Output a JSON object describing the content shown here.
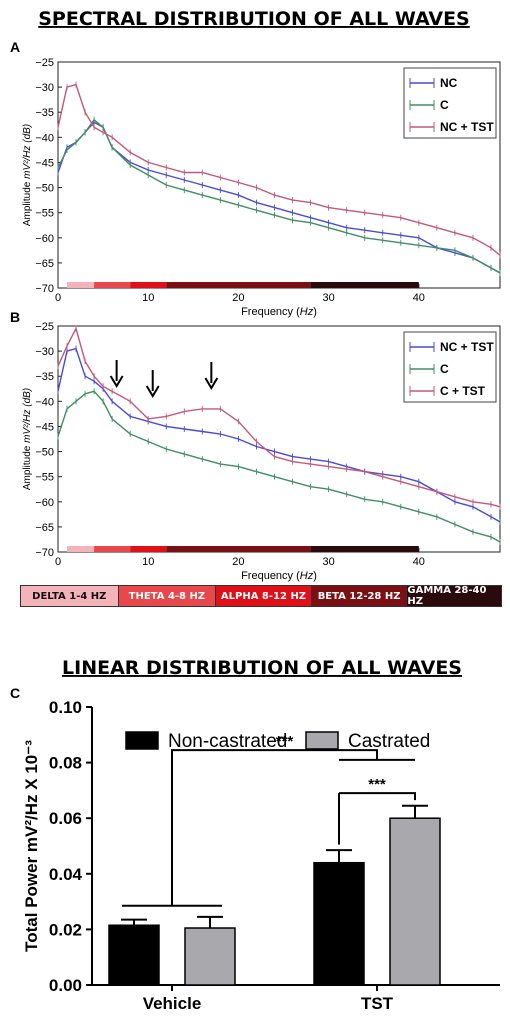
{
  "title_spectral": "SPECTRAL DISTRIBUTION OF ALL WAVES",
  "title_linear": "LINEAR DISTRIBUTION OF ALL WAVES",
  "panel_labels": [
    "A",
    "B",
    "C"
  ],
  "colors": {
    "nc": "#4a4ad8",
    "c": "#3f8f62",
    "tst": "#c05a78"
  },
  "bands": [
    {
      "label": "DELTA 1-4 HZ",
      "color": "#f4b3b8",
      "text_color": "#111111"
    },
    {
      "label": "THETA 4-8 HZ",
      "color": "#e8474b",
      "text_color": "#ffffff"
    },
    {
      "label": "ALPHA 8-12 HZ",
      "color": "#e01018",
      "text_color": "#ffffff"
    },
    {
      "label": "BETA 12-28 HZ",
      "color": "#7a1014",
      "text_color": "#ffffff"
    },
    {
      "label": "GAMMA  28-40 HZ",
      "color": "#2a0a0c",
      "text_color": "#ffffff"
    }
  ],
  "chart_data": [
    {
      "type": "line",
      "panel": "A",
      "xlabel": "Frequency (Hz)",
      "ylabel": "Amplitude mV²/Hz (dB)",
      "xlim": [
        0,
        49
      ],
      "ylim": [
        -70,
        -25
      ],
      "xticks": [
        0,
        10,
        20,
        30,
        40
      ],
      "yticks": [
        -70,
        -65,
        -60,
        -55,
        -50,
        -45,
        -40,
        -35,
        -30,
        -25
      ],
      "x": [
        0,
        1,
        2,
        3,
        4,
        5,
        6,
        8,
        10,
        12,
        14,
        16,
        18,
        20,
        22,
        24,
        26,
        28,
        30,
        32,
        34,
        36,
        38,
        40,
        42,
        44,
        46,
        48,
        49
      ],
      "series": [
        {
          "name": "NC",
          "color_key": "nc",
          "values": [
            -47,
            -42,
            -41,
            -39,
            -37,
            -38,
            -42,
            -45,
            -46.5,
            -47.5,
            -48.5,
            -49.5,
            -50.5,
            -51.5,
            -53,
            -54,
            -55,
            -56,
            -57,
            -58,
            -58.5,
            -59,
            -59.5,
            -60,
            -62,
            -63,
            -64,
            -66,
            -67
          ]
        },
        {
          "name": "C",
          "color_key": "c",
          "values": [
            -46,
            -42.5,
            -41,
            -39,
            -36.5,
            -38,
            -42,
            -45.5,
            -47.5,
            -49.5,
            -50.5,
            -51.5,
            -52.5,
            -53.5,
            -54.5,
            -55.5,
            -56.5,
            -57,
            -58,
            -59,
            -60,
            -60.5,
            -61,
            -61.5,
            -62,
            -62.5,
            -64,
            -66,
            -67
          ]
        },
        {
          "name": "NC + TST",
          "color_key": "tst",
          "values": [
            -38,
            -30,
            -29.5,
            -35,
            -38,
            -39,
            -40,
            -43,
            -45,
            -46,
            -47,
            -47,
            -48,
            -49,
            -50,
            -51.5,
            -52.5,
            -53,
            -54,
            -54.5,
            -55,
            -55.5,
            -56,
            -57,
            -58,
            -59,
            -60,
            -62,
            -63.5
          ]
        }
      ]
    },
    {
      "type": "line",
      "panel": "B",
      "xlabel": "Frequency (Hz)",
      "ylabel": "Amplitude mV²/Hz (dB)",
      "xlim": [
        0,
        49
      ],
      "ylim": [
        -70,
        -25
      ],
      "xticks": [
        0,
        10,
        20,
        30,
        40
      ],
      "yticks": [
        -70,
        -65,
        -60,
        -55,
        -50,
        -45,
        -40,
        -35,
        -30,
        -25
      ],
      "arrows_x": [
        6.5,
        10.5,
        17
      ],
      "x": [
        0,
        1,
        2,
        3,
        4,
        5,
        6,
        8,
        10,
        12,
        14,
        16,
        18,
        20,
        22,
        24,
        26,
        28,
        30,
        32,
        34,
        36,
        38,
        40,
        42,
        44,
        46,
        48,
        49
      ],
      "series": [
        {
          "name": "NC + TST",
          "color_key": "nc",
          "values": [
            -38,
            -30,
            -29.5,
            -35,
            -36,
            -37.5,
            -40,
            -43,
            -44,
            -45,
            -45.5,
            -46,
            -46.5,
            -47.5,
            -49,
            -50,
            -51,
            -51.5,
            -52,
            -53,
            -54,
            -54.5,
            -55,
            -56,
            -58,
            -60,
            -61,
            -63,
            -64
          ]
        },
        {
          "name": "C",
          "color_key": "c",
          "values": [
            -47,
            -41.5,
            -40,
            -38.5,
            -38,
            -40,
            -43.5,
            -46.5,
            -48,
            -49.5,
            -50.5,
            -51.5,
            -52.5,
            -53,
            -54,
            -55,
            -56,
            -57,
            -57.5,
            -58.5,
            -59.5,
            -60,
            -61,
            -62,
            -63,
            -64.5,
            -66,
            -67,
            -68
          ]
        },
        {
          "name": "C + TST",
          "color_key": "tst",
          "values": [
            -33,
            -29,
            -25.5,
            -32,
            -35,
            -37,
            -38,
            -40,
            -43.5,
            -43,
            -42,
            -41.5,
            -41.5,
            -44,
            -48,
            -51,
            -52,
            -52.5,
            -53,
            -53.5,
            -54,
            -55,
            -56,
            -57,
            -58,
            -59,
            -60,
            -60.5,
            -61
          ]
        }
      ]
    },
    {
      "type": "bar",
      "panel": "C",
      "categories": [
        "Vehicle",
        "TST"
      ],
      "ylabel": "Total Power mV²/Hz X 10⁻³",
      "ylim": [
        0,
        0.1
      ],
      "yticks": [
        0.0,
        0.02,
        0.04,
        0.06,
        0.08,
        0.1
      ],
      "ytick_labels": [
        "0.00",
        "0.02",
        "0.04",
        "0.06",
        "0.08",
        "0.10"
      ],
      "series": [
        {
          "name": "Non-castrated",
          "color": "#000000",
          "values": [
            0.0215,
            0.044
          ],
          "errors": [
            0.002,
            0.0045
          ]
        },
        {
          "name": "Castrated",
          "color": "#a9a9ad",
          "values": [
            0.0205,
            0.06
          ],
          "errors": [
            0.004,
            0.0045
          ]
        }
      ],
      "significance": [
        "***",
        "***"
      ]
    }
  ]
}
